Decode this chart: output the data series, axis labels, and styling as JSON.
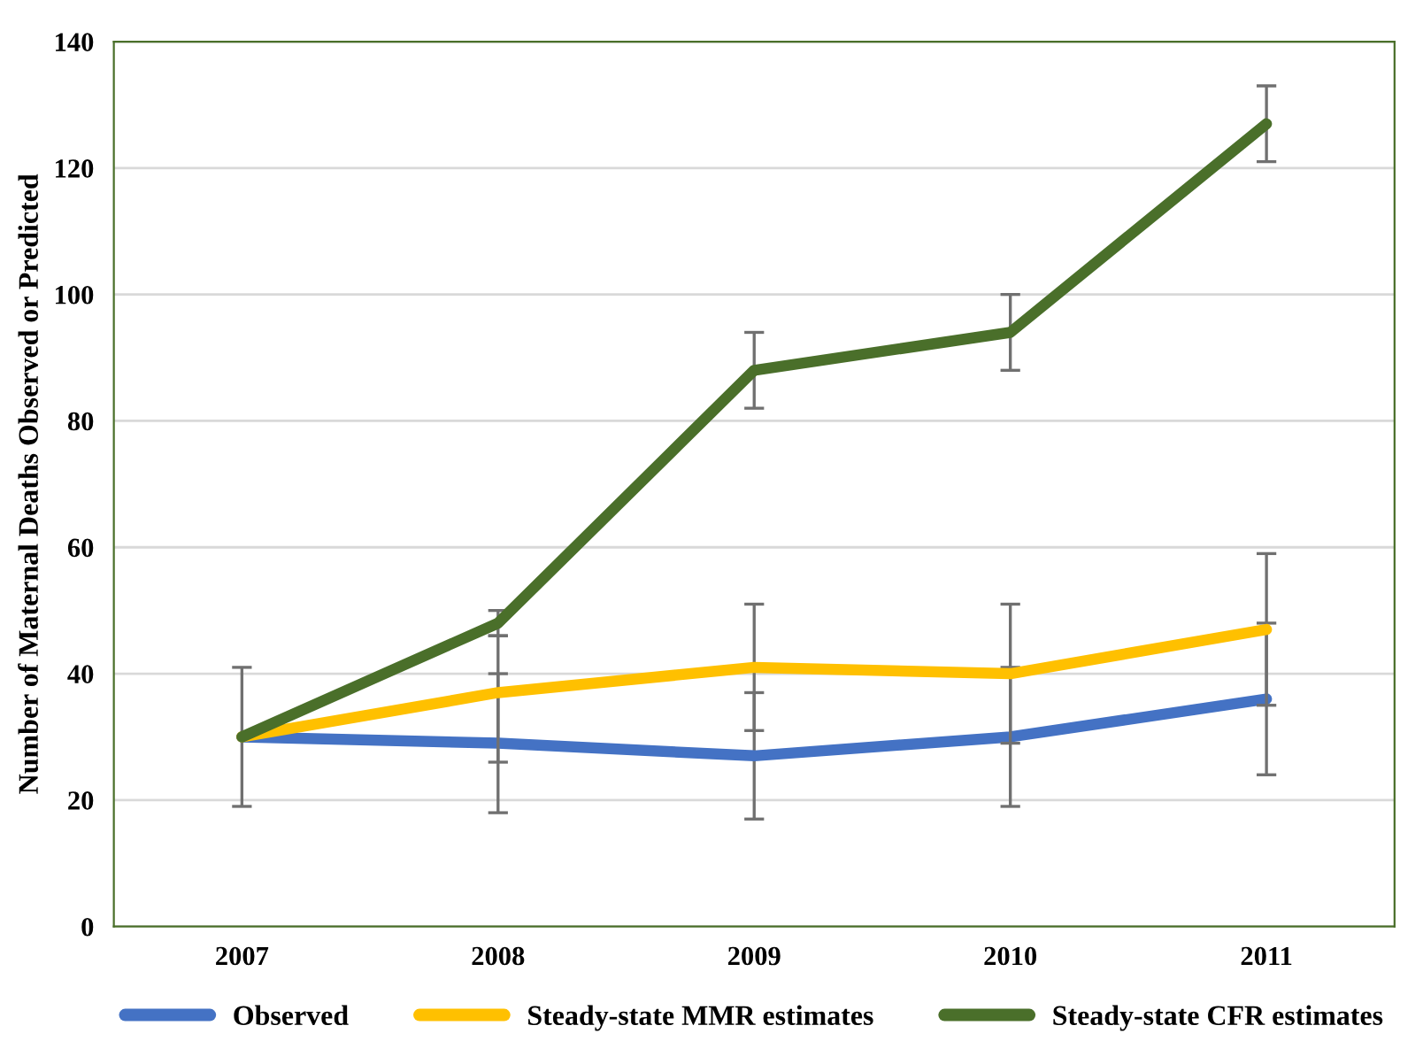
{
  "chart_data": {
    "type": "line",
    "ylabel": "Number of Maternal Deaths Observed or Predicted",
    "categories": [
      "2007",
      "2008",
      "2009",
      "2010",
      "2011"
    ],
    "series": [
      {
        "name": "Observed",
        "color": "#4472c4",
        "values": [
          30,
          29,
          27,
          30,
          36
        ],
        "errors": [
          11,
          11,
          10,
          11,
          12
        ]
      },
      {
        "name": "Steady-state MMR estimates",
        "color": "#ffc000",
        "values": [
          30,
          37,
          41,
          40,
          47
        ],
        "errors": [
          null,
          [
            26,
            46
          ],
          10,
          11,
          12
        ]
      },
      {
        "name": "Steady-state CFR estimates",
        "color": "#4a6f2a",
        "values": [
          30,
          48,
          88,
          94,
          127
        ],
        "errors": [
          null,
          2,
          6,
          6,
          6
        ]
      }
    ],
    "ylim": [
      0,
      140
    ],
    "yticks": [
      0,
      20,
      40,
      60,
      80,
      100,
      120,
      140
    ],
    "grid": "y",
    "legend": "bottom",
    "marker": "none",
    "line_style": "solid"
  }
}
